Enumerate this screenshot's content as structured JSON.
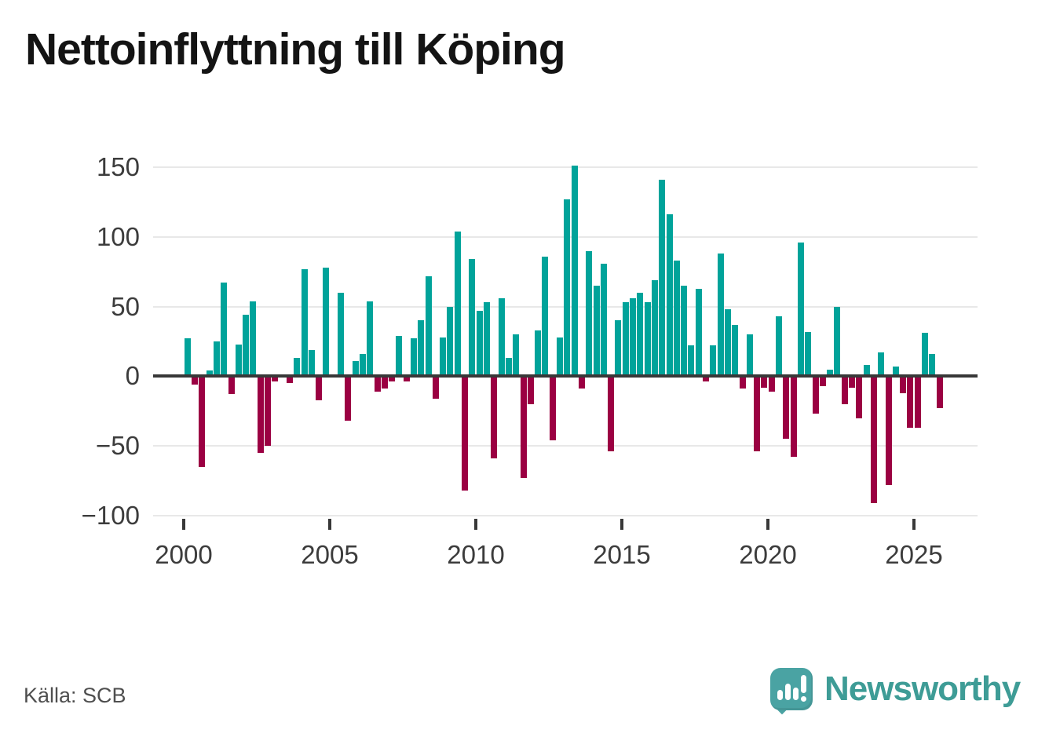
{
  "title": "Nettoinflyttning till Köping",
  "source": "Källa: SCB",
  "branding": {
    "logo_text": "Newsworthy"
  },
  "colors": {
    "positive": "#00a39a",
    "negative": "#9b0042",
    "axis": "#383838",
    "grid": "#e8e8e8",
    "tick_label": "#3c3c3c",
    "brand_teal": "#3e9c96",
    "bubble_teal": "#4aa3a3"
  },
  "chart_data": {
    "type": "bar",
    "title": "Nettoinflyttning till Köping",
    "xlabel": "",
    "ylabel": "",
    "ylim": [
      -100,
      150
    ],
    "y_gridlines": [
      150,
      100,
      50,
      0,
      -50,
      -100
    ],
    "y_tick_labels": [
      "150",
      "100",
      "50",
      "0",
      "−50",
      "−100"
    ],
    "x_tick_labels": [
      "2000",
      "2005",
      "2010",
      "2015",
      "2020",
      "2025"
    ],
    "frequency": "quarterly",
    "start_period": "2000 Q1",
    "end_period": "2025 Q4",
    "legend": "none",
    "grid": "horizontal",
    "series": [
      {
        "name": "Nettoinflyttning",
        "values": [
          27,
          -6,
          -65,
          4,
          25,
          67,
          -13,
          23,
          44,
          54,
          -55,
          -50,
          -4,
          0,
          -5,
          13,
          77,
          19,
          -17,
          78,
          0,
          60,
          -32,
          11,
          16,
          54,
          -11,
          -9,
          -4,
          29,
          -4,
          27,
          40,
          72,
          -16,
          28,
          50,
          104,
          -82,
          84,
          47,
          53,
          -59,
          56,
          13,
          30,
          -73,
          -20,
          33,
          86,
          -46,
          28,
          127,
          151,
          -9,
          90,
          65,
          81,
          -54,
          40,
          53,
          56,
          60,
          53,
          69,
          141,
          116,
          83,
          65,
          22,
          63,
          -4,
          22,
          88,
          48,
          37,
          -9,
          30,
          -54,
          -8,
          -11,
          43,
          -45,
          -58,
          96,
          32,
          -27,
          -7,
          5,
          50,
          -20,
          -8,
          -30,
          8,
          -91,
          17,
          -78,
          7,
          -12,
          -37,
          -37,
          31,
          16,
          -23
        ]
      }
    ]
  }
}
